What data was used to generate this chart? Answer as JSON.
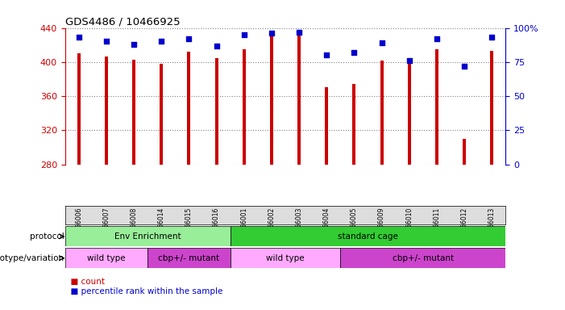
{
  "title": "GDS4486 / 10466925",
  "samples": [
    "GSM766006",
    "GSM766007",
    "GSM766008",
    "GSM766014",
    "GSM766015",
    "GSM766016",
    "GSM766001",
    "GSM766002",
    "GSM766003",
    "GSM766004",
    "GSM766005",
    "GSM766009",
    "GSM766010",
    "GSM766011",
    "GSM766012",
    "GSM766013"
  ],
  "counts": [
    410,
    406,
    403,
    398,
    412,
    405,
    415,
    430,
    435,
    370,
    374,
    402,
    400,
    415,
    310,
    413
  ],
  "percentiles": [
    93,
    90,
    88,
    90,
    92,
    87,
    95,
    96,
    97,
    80,
    82,
    89,
    76,
    92,
    72,
    93
  ],
  "ymin": 280,
  "ymax": 440,
  "y_ticks": [
    280,
    320,
    360,
    400,
    440
  ],
  "right_yticks": [
    0,
    25,
    50,
    75,
    100
  ],
  "right_ytick_labels": [
    "0",
    "25",
    "50",
    "75",
    "100%"
  ],
  "bar_color": "#cc0000",
  "dot_color": "#0000cc",
  "protocol_labels": [
    "Env Enrichment",
    "standard cage"
  ],
  "protocol_ranges": [
    [
      0,
      6
    ],
    [
      6,
      16
    ]
  ],
  "protocol_colors": [
    "#99ee99",
    "#33cc33"
  ],
  "genotype_labels": [
    "wild type",
    "cbp+/- mutant",
    "wild type",
    "cbp+/- mutant"
  ],
  "genotype_ranges": [
    [
      0,
      3
    ],
    [
      3,
      6
    ],
    [
      6,
      10
    ],
    [
      10,
      16
    ]
  ],
  "genotype_colors": [
    "#ffaaff",
    "#cc44cc",
    "#ffaaff",
    "#cc44cc"
  ],
  "legend_count_color": "#cc0000",
  "legend_dot_color": "#0000cc",
  "left_tick_color": "#cc0000",
  "right_tick_color": "#0000cc"
}
